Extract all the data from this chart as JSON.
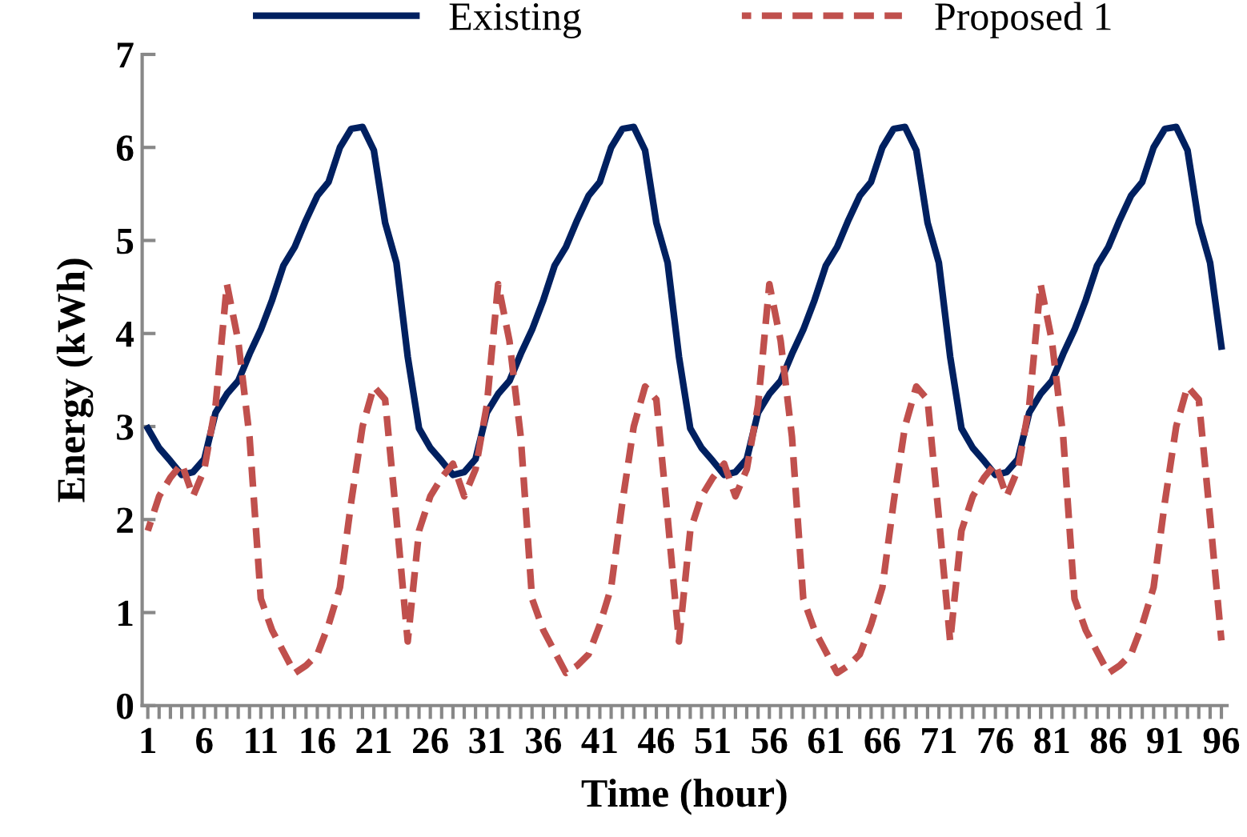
{
  "chart_data": {
    "type": "line",
    "xlabel": "Time (hour)",
    "ylabel": "Energy (kWh)",
    "categories": [
      "1",
      null,
      null,
      null,
      null,
      "6",
      null,
      null,
      null,
      null,
      "11",
      null,
      null,
      null,
      null,
      "16",
      null,
      null,
      null,
      null,
      "21",
      null,
      null,
      null,
      null,
      "26",
      null,
      null,
      null,
      null,
      "31",
      null,
      null,
      null,
      null,
      "36",
      null,
      null,
      null,
      null,
      "41",
      null,
      null,
      null,
      null,
      "46",
      null,
      null,
      null,
      null,
      "51",
      null,
      null,
      null,
      null,
      "56",
      null,
      null,
      null,
      null,
      "61",
      null,
      null,
      null,
      null,
      "66",
      null,
      null,
      null,
      null,
      "71",
      null,
      null,
      null,
      null,
      "76",
      null,
      null,
      null,
      null,
      "81",
      null,
      null,
      null,
      null,
      "86",
      null,
      null,
      null,
      null,
      "91",
      null,
      null,
      null,
      null,
      "96"
    ],
    "series": [
      {
        "name": "Existing",
        "color": "#002060",
        "line_style": "solid",
        "values": [
          2.98,
          2.77,
          2.63,
          2.48,
          2.51,
          2.65,
          3.15,
          3.35,
          3.49,
          3.78,
          4.04,
          4.36,
          4.73,
          4.93,
          5.22,
          5.48,
          5.63,
          6.0,
          6.2,
          6.22,
          5.97,
          5.19,
          4.76,
          3.75,
          2.98,
          2.77,
          2.63,
          2.48,
          2.51,
          2.65,
          3.15,
          3.35,
          3.49,
          3.78,
          4.04,
          4.36,
          4.73,
          4.93,
          5.22,
          5.48,
          5.63,
          6.0,
          6.2,
          6.22,
          5.97,
          5.19,
          4.76,
          3.75,
          2.98,
          2.77,
          2.63,
          2.48,
          2.51,
          2.65,
          3.15,
          3.35,
          3.49,
          3.78,
          4.04,
          4.36,
          4.73,
          4.93,
          5.22,
          5.48,
          5.63,
          6.0,
          6.2,
          6.22,
          5.97,
          5.19,
          4.76,
          3.75,
          2.98,
          2.77,
          2.63,
          2.48,
          2.51,
          2.65,
          3.15,
          3.35,
          3.49,
          3.78,
          4.04,
          4.36,
          4.73,
          4.93,
          5.22,
          5.48,
          5.63,
          6.0,
          6.2,
          6.22,
          5.97,
          5.19,
          4.76,
          3.86
        ]
      },
      {
        "name": "Proposed 1",
        "color": "#c0504d",
        "line_style": "dashed",
        "values": [
          1.88,
          2.25,
          2.45,
          2.6,
          2.25,
          2.54,
          3.23,
          4.53,
          3.92,
          2.89,
          1.15,
          0.81,
          0.58,
          0.35,
          0.43,
          0.55,
          0.87,
          1.27,
          2.19,
          3.0,
          3.43,
          3.29,
          2.02,
          0.69,
          1.88,
          2.25,
          2.45,
          2.6,
          2.25,
          2.54,
          3.23,
          4.53,
          3.92,
          2.89,
          1.15,
          0.81,
          0.58,
          0.35,
          0.43,
          0.55,
          0.87,
          1.27,
          2.19,
          3.0,
          3.43,
          3.29,
          2.02,
          0.69,
          1.88,
          2.25,
          2.45,
          2.6,
          2.25,
          2.54,
          3.23,
          4.53,
          3.92,
          2.89,
          1.15,
          0.81,
          0.58,
          0.35,
          0.43,
          0.55,
          0.87,
          1.27,
          2.19,
          3.0,
          3.43,
          3.29,
          2.02,
          0.69,
          1.88,
          2.25,
          2.45,
          2.6,
          2.25,
          2.54,
          3.23,
          4.53,
          3.92,
          2.89,
          1.15,
          0.81,
          0.58,
          0.35,
          0.43,
          0.55,
          0.87,
          1.27,
          2.19,
          3.0,
          3.43,
          3.29,
          2.02,
          0.7
        ]
      }
    ],
    "ylim": [
      0,
      7
    ],
    "yticks": [
      0,
      1,
      2,
      3,
      4,
      5,
      6,
      7
    ],
    "grid": false,
    "legend": "top",
    "marker": "none"
  }
}
